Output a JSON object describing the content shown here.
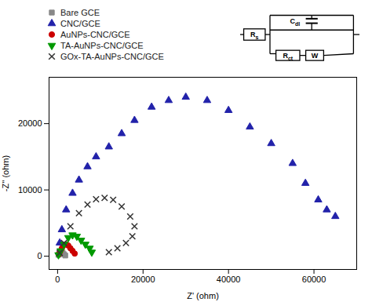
{
  "chart_data": {
    "type": "scatter",
    "xlabel": "Z' (ohm)",
    "ylabel": "-Z'' (ohm)",
    "xlim": [
      -2000,
      70000
    ],
    "ylim": [
      -2000,
      27000
    ],
    "xticks": [
      0,
      20000,
      40000,
      60000
    ],
    "yticks": [
      0,
      10000,
      20000
    ],
    "legend": "top",
    "annotations": [
      "Rs",
      "Cdl",
      "Rct",
      "W"
    ],
    "series": [
      {
        "name": "Bare GCE",
        "color": "#888888",
        "marker": "square",
        "x": [
          200,
          400,
          600,
          900,
          1200,
          1500,
          1800
        ],
        "values": [
          200,
          350,
          500,
          600,
          500,
          300,
          100
        ]
      },
      {
        "name": "CNC/GCE",
        "color": "#2222aa",
        "marker": "triangle-up",
        "x": [
          500,
          1000,
          2000,
          3500,
          5000,
          7000,
          9000,
          12000,
          15000,
          18000,
          22000,
          26000,
          30000,
          35000,
          40000,
          45000,
          50000,
          55000,
          58000,
          61000,
          63000,
          65000
        ],
        "values": [
          2000,
          4000,
          7000,
          9500,
          11500,
          13500,
          15000,
          16500,
          18500,
          20500,
          22500,
          23500,
          24000,
          23500,
          22000,
          19500,
          17000,
          14000,
          11000,
          8500,
          7000,
          6000
        ]
      },
      {
        "name": "AuNPs-CNC/GCE",
        "color": "#cc0000",
        "marker": "circle",
        "x": [
          300,
          600,
          1000,
          1500,
          2000,
          2500,
          3000,
          3500,
          4000
        ],
        "values": [
          300,
          700,
          1200,
          1700,
          1800,
          1600,
          1200,
          800,
          400
        ]
      },
      {
        "name": "TA-AuNPs-CNC/GCE",
        "color": "#009900",
        "marker": "triangle-down",
        "x": [
          200,
          700,
          1500,
          2500,
          3500,
          4500,
          5500,
          6500,
          7500,
          8000
        ],
        "values": [
          200,
          800,
          1800,
          2800,
          3200,
          3000,
          2400,
          1800,
          1200,
          600
        ]
      },
      {
        "name": "GOx-TA-AuNPs-CNC/GCE",
        "color": "#333333",
        "marker": "x",
        "x": [
          500,
          1500,
          3000,
          5000,
          7000,
          9000,
          11000,
          13000,
          15000,
          17000,
          18000,
          17500,
          16000,
          14000,
          12000
        ],
        "values": [
          500,
          2000,
          4500,
          6500,
          7800,
          8600,
          8800,
          8500,
          7500,
          6000,
          4500,
          3000,
          2000,
          1200,
          600
        ]
      }
    ]
  }
}
